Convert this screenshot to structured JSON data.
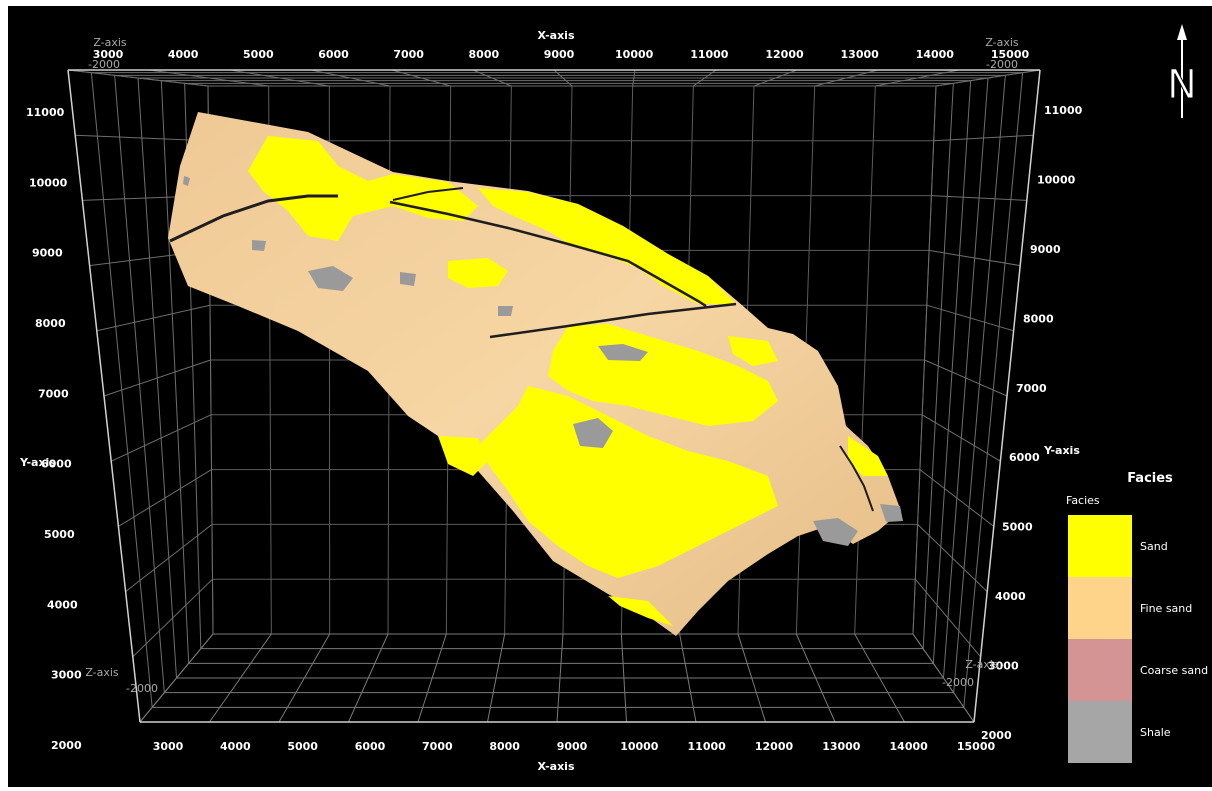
{
  "x_axis": {
    "title": "X-axis",
    "top_ticks": [
      "3000",
      "4000",
      "5000",
      "6000",
      "7000",
      "8000",
      "9000",
      "10000",
      "11000",
      "12000",
      "13000",
      "14000",
      "15000"
    ],
    "bottom_ticks": [
      "3000",
      "4000",
      "5000",
      "6000",
      "7000",
      "8000",
      "9000",
      "10000",
      "11000",
      "12000",
      "13000",
      "14000",
      "15000"
    ]
  },
  "y_axis": {
    "title": "Y-axis",
    "left_ticks": [
      "11000",
      "10000",
      "9000",
      "8000",
      "7000",
      "6000",
      "5000",
      "4000",
      "3000",
      "2000"
    ],
    "right_ticks": [
      "11000",
      "10000",
      "9000",
      "8000",
      "7000",
      "6000",
      "5000",
      "4000",
      "3000",
      "2000"
    ]
  },
  "z_axis": {
    "title": "Z-axis",
    "value": "-2000"
  },
  "north_arrow": {
    "label": "N",
    "icon": "north-arrow-icon"
  },
  "legend": {
    "title": "Facies",
    "subtitle": "Facies",
    "items": [
      {
        "label": "Sand",
        "color": "#ffff00"
      },
      {
        "label": "Fine sand",
        "color": "#fed38a"
      },
      {
        "label": "Coarse sand",
        "color": "#d49494"
      },
      {
        "label": "Shale",
        "color": "#a6a6a6"
      }
    ]
  },
  "colors": {
    "background": "#000000",
    "grid": "#8a8a8a",
    "surface_base": "#f2cf9a",
    "sand": "#ffff00",
    "shale": "#9a9a9a",
    "fault": "#1e1e1e"
  }
}
